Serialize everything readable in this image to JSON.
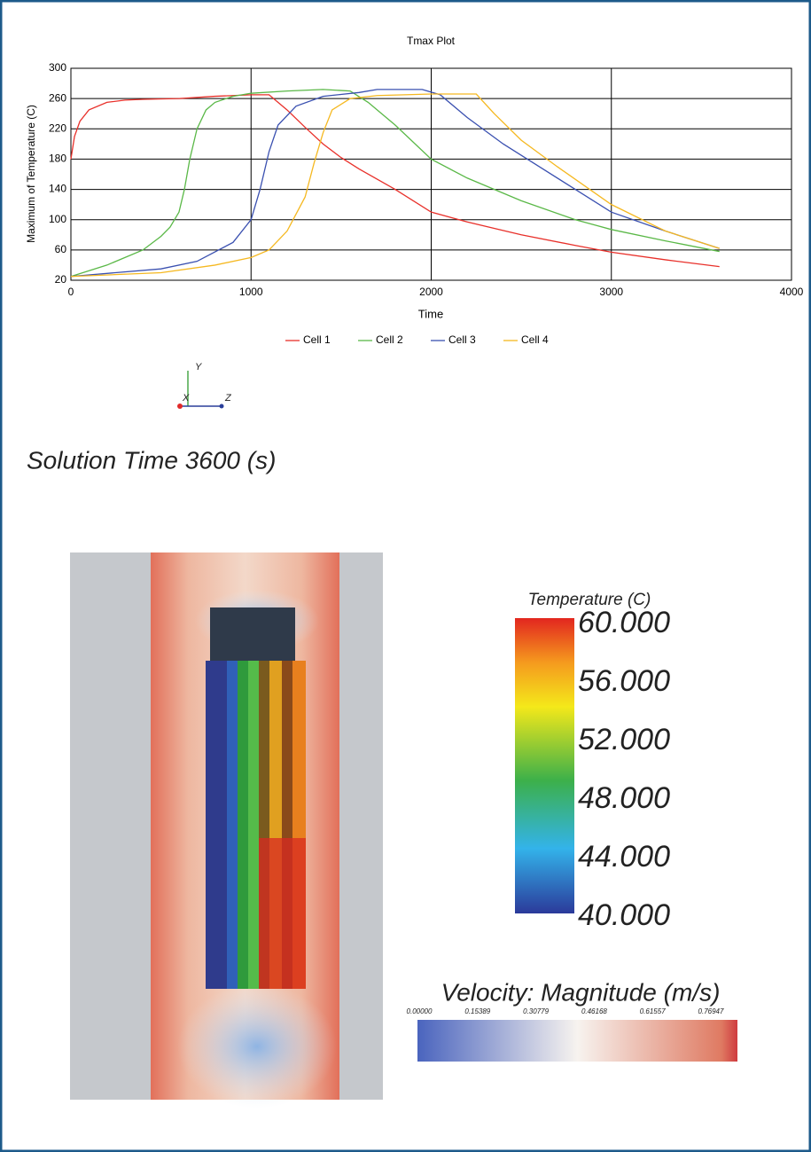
{
  "chart_data": {
    "type": "line",
    "title": "Tmax Plot",
    "x_label": "Time",
    "y_label": "Maximum of Temperature (C)",
    "xlim": [
      0,
      4000
    ],
    "ylim": [
      20,
      300
    ],
    "xticks": [
      0,
      1000,
      2000,
      3000,
      4000
    ],
    "yticks": [
      20,
      60,
      100,
      140,
      180,
      220,
      260,
      300
    ],
    "grid": true,
    "legend": "bottom",
    "series": [
      {
        "name": "Cell 1",
        "color": "#e8302a",
        "x": [
          0,
          20,
          50,
          100,
          200,
          300,
          400,
          600,
          800,
          1000,
          1100,
          1200,
          1300,
          1400,
          1500,
          1600,
          1800,
          2000,
          2200,
          2500,
          2800,
          3000,
          3300,
          3600
        ],
        "values": [
          180,
          210,
          230,
          245,
          255,
          258,
          259,
          260,
          263,
          265,
          265,
          245,
          222,
          200,
          182,
          167,
          140,
          110,
          97,
          80,
          66,
          57,
          47,
          38
        ]
      },
      {
        "name": "Cell 2",
        "color": "#5ab847",
        "x": [
          0,
          200,
          400,
          500,
          550,
          600,
          630,
          660,
          700,
          750,
          800,
          900,
          1000,
          1200,
          1400,
          1550,
          1650,
          1800,
          2000,
          2200,
          2500,
          2800,
          3000,
          3300,
          3600
        ],
        "values": [
          25,
          40,
          60,
          78,
          90,
          110,
          140,
          180,
          220,
          245,
          255,
          263,
          267,
          270,
          272,
          270,
          255,
          225,
          180,
          155,
          125,
          100,
          87,
          72,
          58
        ]
      },
      {
        "name": "Cell 3",
        "color": "#3a50b0",
        "x": [
          0,
          500,
          700,
          900,
          1000,
          1050,
          1100,
          1150,
          1250,
          1400,
          1600,
          1700,
          1950,
          2050,
          2200,
          2400,
          2600,
          2800,
          3000,
          3300,
          3600
        ],
        "values": [
          25,
          35,
          45,
          70,
          100,
          140,
          190,
          225,
          250,
          263,
          268,
          272,
          272,
          265,
          235,
          200,
          170,
          140,
          110,
          85,
          62
        ]
      },
      {
        "name": "Cell 4",
        "color": "#f5b820",
        "x": [
          0,
          500,
          800,
          1000,
          1100,
          1200,
          1300,
          1350,
          1400,
          1450,
          1550,
          1700,
          2000,
          2250,
          2350,
          2500,
          2700,
          3000,
          3300,
          3600
        ],
        "values": [
          25,
          30,
          40,
          50,
          60,
          85,
          130,
          175,
          215,
          245,
          260,
          264,
          266,
          266,
          240,
          205,
          170,
          120,
          85,
          62
        ]
      }
    ]
  },
  "axes_triad": {
    "y": "Y",
    "x": "X",
    "z": "Z"
  },
  "solution_time": "Solution Time 3600 (s)",
  "temperature_legend": {
    "title": "Temperature (C)",
    "labels": [
      "60.000",
      "56.000",
      "52.000",
      "48.000",
      "44.000",
      "40.000"
    ]
  },
  "velocity_legend": {
    "title": "Velocity: Magnitude (m/s)",
    "labels": [
      "0.00000",
      "0.15389",
      "0.30779",
      "0.46168",
      "0.61557",
      "0.76947"
    ]
  }
}
